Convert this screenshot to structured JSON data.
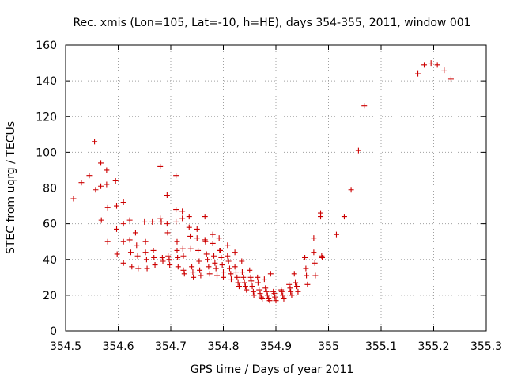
{
  "chart_data": {
    "type": "scatter",
    "title": "Rec. xmis (Lon=105, Lat=-10, h=HE), days 354-355, 2011, window 001",
    "xlabel": "GPS time / Days of year 2011",
    "ylabel": "STEC from uqrg / TECUs",
    "xlim": [
      354.5,
      355.3
    ],
    "ylim": [
      0,
      160
    ],
    "xticks": [
      "354.5",
      "354.6",
      "354.7",
      "354.8",
      "354.9",
      "355",
      "355.1",
      "355.2",
      "355.3"
    ],
    "yticks": [
      "0",
      "20",
      "40",
      "60",
      "80",
      "100",
      "120",
      "140",
      "160"
    ],
    "grid": true,
    "marker": "+",
    "color": "#cc0000",
    "points": [
      [
        354.515,
        74
      ],
      [
        354.53,
        83
      ],
      [
        354.545,
        87
      ],
      [
        354.555,
        106
      ],
      [
        354.557,
        79
      ],
      [
        354.567,
        94
      ],
      [
        354.567,
        81
      ],
      [
        354.568,
        62
      ],
      [
        354.578,
        90
      ],
      [
        354.578,
        82
      ],
      [
        354.58,
        69
      ],
      [
        354.58,
        50
      ],
      [
        354.595,
        84
      ],
      [
        354.597,
        70
      ],
      [
        354.597,
        57
      ],
      [
        354.598,
        43
      ],
      [
        354.61,
        72
      ],
      [
        354.61,
        60
      ],
      [
        354.61,
        50
      ],
      [
        354.61,
        38
      ],
      [
        354.622,
        62
      ],
      [
        354.622,
        51
      ],
      [
        354.624,
        44
      ],
      [
        354.626,
        36
      ],
      [
        354.633,
        55
      ],
      [
        354.635,
        48
      ],
      [
        354.637,
        42
      ],
      [
        354.638,
        35
      ],
      [
        354.65,
        61
      ],
      [
        354.652,
        50
      ],
      [
        354.652,
        44
      ],
      [
        354.654,
        40
      ],
      [
        354.655,
        35
      ],
      [
        354.665,
        61
      ],
      [
        354.667,
        45
      ],
      [
        354.668,
        41
      ],
      [
        354.67,
        37
      ],
      [
        354.68,
        92
      ],
      [
        354.68,
        63
      ],
      [
        354.682,
        61
      ],
      [
        354.684,
        41
      ],
      [
        354.685,
        39
      ],
      [
        354.693,
        76
      ],
      [
        354.693,
        60
      ],
      [
        354.694,
        55
      ],
      [
        354.695,
        42
      ],
      [
        354.697,
        40
      ],
      [
        354.698,
        37
      ],
      [
        354.71,
        87
      ],
      [
        354.71,
        68
      ],
      [
        354.71,
        61
      ],
      [
        354.712,
        50
      ],
      [
        354.712,
        45
      ],
      [
        354.713,
        41
      ],
      [
        354.714,
        36
      ],
      [
        354.722,
        67
      ],
      [
        354.722,
        63
      ],
      [
        354.723,
        46
      ],
      [
        354.724,
        42
      ],
      [
        354.724,
        34
      ],
      [
        354.726,
        32
      ],
      [
        354.735,
        64
      ],
      [
        354.735,
        58
      ],
      [
        354.737,
        53
      ],
      [
        354.738,
        46
      ],
      [
        354.74,
        36
      ],
      [
        354.742,
        33
      ],
      [
        354.743,
        30
      ],
      [
        354.75,
        57
      ],
      [
        354.75,
        52
      ],
      [
        354.752,
        45
      ],
      [
        354.754,
        39
      ],
      [
        354.755,
        34
      ],
      [
        354.757,
        31
      ],
      [
        354.765,
        64
      ],
      [
        354.765,
        51
      ],
      [
        354.766,
        50
      ],
      [
        354.768,
        43
      ],
      [
        354.77,
        40
      ],
      [
        354.772,
        36
      ],
      [
        354.774,
        32
      ],
      [
        354.78,
        54
      ],
      [
        354.78,
        49
      ],
      [
        354.782,
        42
      ],
      [
        354.784,
        38
      ],
      [
        354.786,
        35
      ],
      [
        354.788,
        31
      ],
      [
        354.792,
        52
      ],
      [
        354.793,
        45
      ],
      [
        354.794,
        45
      ],
      [
        354.796,
        41
      ],
      [
        354.798,
        37
      ],
      [
        354.8,
        33
      ],
      [
        354.8,
        30
      ],
      [
        354.808,
        48
      ],
      [
        354.808,
        42
      ],
      [
        354.81,
        39
      ],
      [
        354.812,
        35
      ],
      [
        354.814,
        32
      ],
      [
        354.815,
        29
      ],
      [
        354.822,
        44
      ],
      [
        354.822,
        36
      ],
      [
        354.824,
        33
      ],
      [
        354.826,
        30
      ],
      [
        354.828,
        27
      ],
      [
        354.83,
        25
      ],
      [
        354.835,
        39
      ],
      [
        354.836,
        33
      ],
      [
        354.838,
        30
      ],
      [
        354.84,
        27
      ],
      [
        354.842,
        25
      ],
      [
        354.844,
        23
      ],
      [
        354.85,
        34
      ],
      [
        354.852,
        30
      ],
      [
        354.853,
        28
      ],
      [
        354.855,
        25
      ],
      [
        354.857,
        22
      ],
      [
        354.858,
        20
      ],
      [
        354.865,
        30
      ],
      [
        354.866,
        27
      ],
      [
        354.868,
        23
      ],
      [
        354.87,
        21
      ],
      [
        354.872,
        19
      ],
      [
        354.874,
        18
      ],
      [
        354.878,
        29
      ],
      [
        354.88,
        24
      ],
      [
        354.882,
        22
      ],
      [
        354.884,
        20
      ],
      [
        354.886,
        18
      ],
      [
        354.888,
        17
      ],
      [
        354.89,
        32
      ],
      [
        354.895,
        22
      ],
      [
        354.897,
        21
      ],
      [
        354.898,
        19
      ],
      [
        354.9,
        17
      ],
      [
        354.91,
        23
      ],
      [
        354.911,
        22
      ],
      [
        354.913,
        20
      ],
      [
        354.915,
        18
      ],
      [
        354.925,
        26
      ],
      [
        354.927,
        24
      ],
      [
        354.928,
        22
      ],
      [
        354.93,
        20
      ],
      [
        354.935,
        32
      ],
      [
        354.937,
        27
      ],
      [
        354.94,
        25
      ],
      [
        354.942,
        22
      ],
      [
        354.955,
        41
      ],
      [
        354.957,
        35
      ],
      [
        354.958,
        31
      ],
      [
        354.96,
        26
      ],
      [
        354.972,
        52
      ],
      [
        354.972,
        44
      ],
      [
        354.974,
        38
      ],
      [
        354.975,
        31
      ],
      [
        354.985,
        66
      ],
      [
        354.985,
        64
      ],
      [
        354.987,
        42
      ],
      [
        354.988,
        41
      ],
      [
        355.015,
        54
      ],
      [
        355.03,
        64
      ],
      [
        355.043,
        79
      ],
      [
        355.057,
        101
      ],
      [
        355.068,
        126
      ],
      [
        355.17,
        144
      ],
      [
        355.182,
        149
      ],
      [
        355.195,
        150
      ],
      [
        355.207,
        149
      ],
      [
        355.22,
        146
      ],
      [
        355.233,
        141
      ]
    ]
  }
}
